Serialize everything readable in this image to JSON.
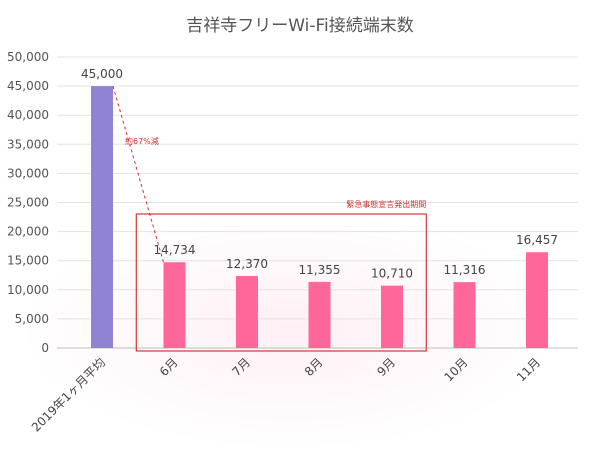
{
  "chart_data": {
    "type": "bar",
    "title": "吉祥寺フリーWi-Fi接続端末数",
    "categories": [
      "2019年1ヶ月平均",
      "6月",
      "7月",
      "8月",
      "9月",
      "10月",
      "11月"
    ],
    "values": [
      45000,
      14734,
      12370,
      11355,
      10710,
      11316,
      16457
    ],
    "value_labels": [
      "45,000",
      "14,734",
      "12,370",
      "11,355",
      "10,710",
      "11,316",
      "16,457"
    ],
    "ylim": [
      0,
      50000
    ],
    "yticks": [
      0,
      5000,
      10000,
      15000,
      20000,
      25000,
      30000,
      35000,
      40000,
      45000,
      50000
    ],
    "ytick_labels": [
      "0",
      "5,000",
      "10,000",
      "15,000",
      "20,000",
      "25,000",
      "30,000",
      "35,000",
      "40,000",
      "45,000",
      "50,000"
    ],
    "xlabel": "",
    "ylabel": "",
    "grid": true,
    "colors": {
      "first_bar": "#9183d3",
      "bars": "#ff6699",
      "annotation": "#d23030",
      "grid": "#e3e3e3"
    },
    "annotations": {
      "reduction_label": "約67%減",
      "emergency_label": "緊急事態宣言発出期間",
      "emergency_categories": [
        "6月",
        "7月",
        "8月",
        "9月"
      ]
    }
  }
}
